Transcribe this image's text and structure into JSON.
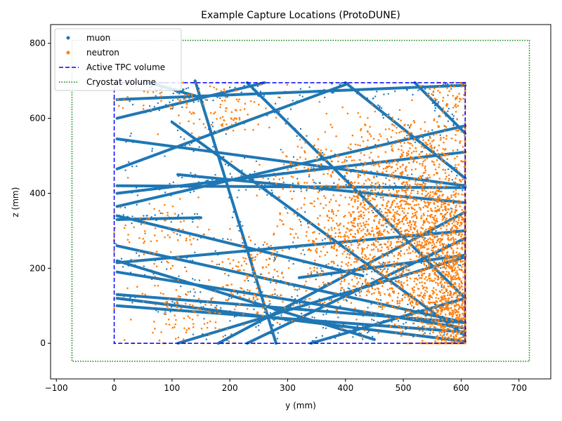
{
  "chart_data": {
    "type": "scatter",
    "title": "Example Capture Locations (ProtoDUNE)",
    "xlabel": "y (mm)",
    "ylabel": "z (mm)",
    "xlim": [
      -110,
      755
    ],
    "ylim": [
      -95,
      850
    ],
    "xticks": [
      -100,
      0,
      100,
      200,
      300,
      400,
      500,
      600,
      700
    ],
    "yticks": [
      0,
      200,
      400,
      600,
      800
    ],
    "grid": false,
    "legend_position": "top-left",
    "colors": {
      "muon": "#1f77b4",
      "neutron": "#ff7f0e",
      "tpc": "#0000ff",
      "cryostat": "#008000"
    },
    "legend": [
      "muon",
      "neutron",
      "Active TPC volume",
      "Cryostat volume"
    ],
    "regions": [
      {
        "name": "Active TPC volume",
        "style": "dashed",
        "color": "#0000ff",
        "x": [
          0,
          607
        ],
        "y": [
          0,
          695
        ]
      },
      {
        "name": "Cryostat volume",
        "style": "dotted",
        "color": "#008000",
        "x": [
          -73,
          718
        ],
        "y": [
          -48,
          808
        ]
      }
    ],
    "muon_tracks": [
      [
        [
          5,
          600
        ],
        [
          260,
          695
        ]
      ],
      [
        [
          5,
          465
        ],
        [
          400,
          690
        ]
      ],
      [
        [
          5,
          420
        ],
        [
          607,
          415
        ]
      ],
      [
        [
          5,
          545
        ],
        [
          607,
          420
        ]
      ],
      [
        [
          5,
          365
        ],
        [
          607,
          580
        ]
      ],
      [
        [
          5,
          215
        ],
        [
          607,
          300
        ]
      ],
      [
        [
          5,
          260
        ],
        [
          607,
          55
        ]
      ],
      [
        [
          5,
          100
        ],
        [
          607,
          30
        ]
      ],
      [
        [
          5,
          120
        ],
        [
          607,
          5
        ]
      ],
      [
        [
          5,
          340
        ],
        [
          430,
          180
        ]
      ],
      [
        [
          5,
          330
        ],
        [
          150,
          335
        ]
      ],
      [
        [
          5,
          190
        ],
        [
          607,
          40
        ]
      ],
      [
        [
          110,
          0
        ],
        [
          607,
          230
        ]
      ],
      [
        [
          180,
          0
        ],
        [
          607,
          350
        ]
      ],
      [
        [
          320,
          175
        ],
        [
          607,
          235
        ]
      ],
      [
        [
          230,
          0
        ],
        [
          607,
          280
        ]
      ],
      [
        [
          100,
          590
        ],
        [
          607,
          20
        ]
      ],
      [
        [
          140,
          700
        ],
        [
          280,
          0
        ]
      ],
      [
        [
          230,
          695
        ],
        [
          607,
          120
        ]
      ],
      [
        [
          110,
          450
        ],
        [
          607,
          375
        ]
      ],
      [
        [
          400,
          695
        ],
        [
          607,
          440
        ]
      ],
      [
        [
          520,
          695
        ],
        [
          607,
          560
        ]
      ],
      [
        [
          5,
          130
        ],
        [
          607,
          55
        ]
      ],
      [
        [
          5,
          220
        ],
        [
          450,
          10
        ]
      ],
      [
        [
          5,
          650
        ],
        [
          607,
          688
        ]
      ],
      [
        [
          60,
          695
        ],
        [
          140,
          660
        ]
      ],
      [
        [
          340,
          0
        ],
        [
          607,
          120
        ]
      ],
      [
        [
          5,
          400
        ],
        [
          607,
          510
        ]
      ]
    ],
    "neutron_clusters": [
      {
        "center": [
          590,
          80
        ],
        "spread": [
          30,
          90
        ],
        "count": 700
      },
      {
        "center": [
          580,
          280
        ],
        "spread": [
          40,
          80
        ],
        "count": 500
      },
      {
        "center": [
          520,
          300
        ],
        "spread": [
          60,
          60
        ],
        "count": 400
      },
      {
        "center": [
          480,
          400
        ],
        "spread": [
          70,
          60
        ],
        "count": 380
      },
      {
        "center": [
          540,
          500
        ],
        "spread": [
          50,
          60
        ],
        "count": 250
      },
      {
        "center": [
          460,
          180
        ],
        "spread": [
          50,
          60
        ],
        "count": 200
      },
      {
        "center": [
          420,
          300
        ],
        "spread": [
          40,
          50
        ],
        "count": 150
      },
      {
        "center": [
          330,
          450
        ],
        "spread": [
          40,
          50
        ],
        "count": 80
      },
      {
        "center": [
          340,
          250
        ],
        "spread": [
          60,
          60
        ],
        "count": 90
      },
      {
        "center": [
          230,
          200
        ],
        "spread": [
          30,
          40
        ],
        "count": 70
      },
      {
        "center": [
          130,
          80
        ],
        "spread": [
          60,
          50
        ],
        "count": 120
      },
      {
        "center": [
          80,
          300
        ],
        "spread": [
          50,
          50
        ],
        "count": 80
      },
      {
        "center": [
          200,
          620
        ],
        "spread": [
          40,
          40
        ],
        "count": 70
      },
      {
        "center": [
          100,
          650
        ],
        "spread": [
          60,
          40
        ],
        "count": 60
      },
      {
        "center": [
          590,
          660
        ],
        "spread": [
          20,
          30
        ],
        "count": 60
      },
      {
        "center": [
          420,
          550
        ],
        "spread": [
          60,
          50
        ],
        "count": 60
      },
      {
        "center": [
          280,
          120
        ],
        "spread": [
          50,
          40
        ],
        "count": 60
      },
      {
        "center": [
          540,
          120
        ],
        "spread": [
          50,
          50
        ],
        "count": 250
      }
    ]
  }
}
